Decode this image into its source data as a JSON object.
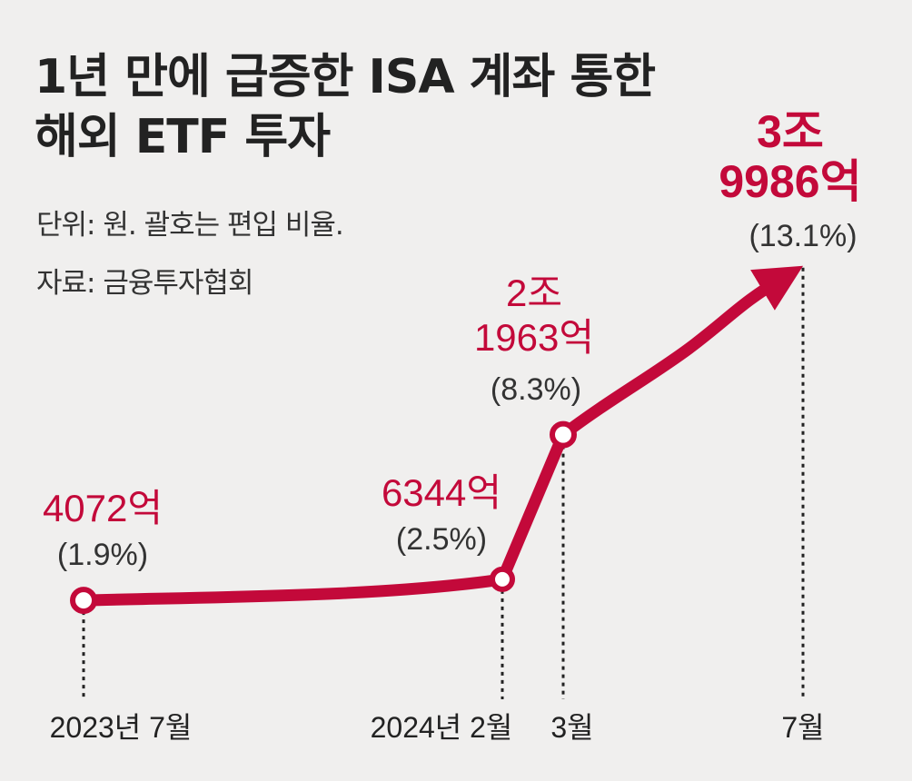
{
  "title_lines": [
    "1년 만에 급증한 ISA 계좌 통한",
    "해외 ETF 투자"
  ],
  "unit_note": "단위: 원. 괄호는 편입 비율.",
  "source_note": "자료: 금융투자협회",
  "colors": {
    "line": "#c3093a",
    "background": "#f0efee"
  },
  "chart_data": {
    "type": "line",
    "title": "1년 만에 급증한 ISA 계좌 통한 해외 ETF 투자",
    "x": [
      "2023년 7월",
      "2024년 2월",
      "3월",
      "7월"
    ],
    "y_unit": "원",
    "series": [
      {
        "values_eok": [
          4072,
          6344,
          21963,
          39986
        ],
        "labels": [
          [
            "4072억"
          ],
          [
            "6344억"
          ],
          [
            "2조",
            "1963억"
          ],
          [
            "3조",
            "9986억"
          ]
        ],
        "share_labels": [
          "(1.9%)",
          "(2.5%)",
          "(8.3%)",
          "(13.1%)"
        ],
        "share_pct": [
          1.9,
          2.5,
          8.3,
          13.1
        ]
      }
    ],
    "grid": false,
    "legend": "none"
  }
}
